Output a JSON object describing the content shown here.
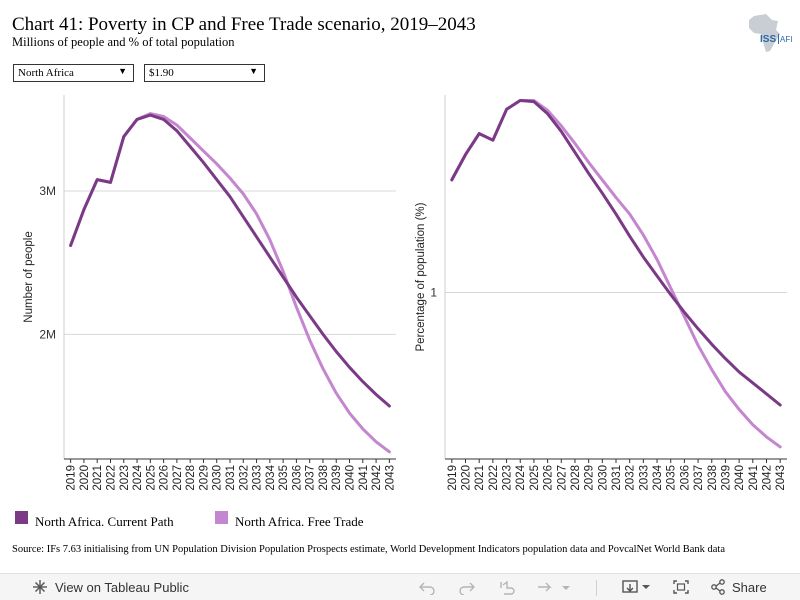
{
  "header": {
    "title": "Chart 41: Poverty in CP and Free Trade scenario, 2019–2043",
    "subtitle": "Millions of people and % of total population",
    "logo_text": "ISS|AFI"
  },
  "filters": {
    "region": "North Africa",
    "poverty_line": "$1.90"
  },
  "legend": {
    "current_path": "North Africa. Current Path",
    "free_trade": "North Africa. Free Trade"
  },
  "colors": {
    "current_path": "#7b3a86",
    "free_trade": "#c486cf",
    "grid": "#d8d8d8",
    "axis": "#555555"
  },
  "source": "Source: IFs 7.63 initialising from UN Population Division Population Prospects estimate, World Development Indicators population data and PovcalNet World Bank data",
  "footer": {
    "view_label": "View on Tableau Public",
    "share_label": "Share"
  },
  "chart_data": [
    {
      "type": "line",
      "ylabel": "Number of people",
      "x": [
        2019,
        2020,
        2021,
        2022,
        2023,
        2024,
        2025,
        2026,
        2027,
        2028,
        2029,
        2030,
        2031,
        2032,
        2033,
        2034,
        2035,
        2036,
        2037,
        2038,
        2039,
        2040,
        2041,
        2042,
        2043
      ],
      "y_ticks": [
        {
          "value": 2000000,
          "label": "2M"
        },
        {
          "value": 3000000,
          "label": "3M"
        }
      ],
      "ylim": [
        1130000,
        3670000
      ],
      "grid": true,
      "series": [
        {
          "name": "North Africa. Current Path",
          "key": "current_path",
          "values": [
            2620000,
            2870000,
            3080000,
            3060000,
            3380000,
            3500000,
            3530000,
            3500000,
            3420000,
            3310000,
            3200000,
            3080000,
            2960000,
            2820000,
            2680000,
            2540000,
            2400000,
            2260000,
            2130000,
            2000000,
            1880000,
            1770000,
            1670000,
            1580000,
            1500000
          ]
        },
        {
          "name": "North Africa. Free Trade",
          "key": "free_trade",
          "values": [
            2620000,
            2870000,
            3080000,
            3060000,
            3380000,
            3500000,
            3540000,
            3520000,
            3460000,
            3370000,
            3280000,
            3190000,
            3090000,
            2980000,
            2840000,
            2660000,
            2440000,
            2190000,
            1960000,
            1760000,
            1590000,
            1450000,
            1340000,
            1250000,
            1180000
          ]
        }
      ]
    },
    {
      "type": "line",
      "ylabel": "Percentage of population (%)",
      "x": [
        2019,
        2020,
        2021,
        2022,
        2023,
        2024,
        2025,
        2026,
        2027,
        2028,
        2029,
        2030,
        2031,
        2032,
        2033,
        2034,
        2035,
        2036,
        2037,
        2038,
        2039,
        2040,
        2041,
        2042,
        2043
      ],
      "y_ticks": [
        {
          "value": 1,
          "label": "1"
        }
      ],
      "ylim": [
        0.245,
        1.895
      ],
      "grid": true,
      "series": [
        {
          "name": "North Africa. Current Path",
          "key": "current_path",
          "values": [
            1.51,
            1.625,
            1.72,
            1.69,
            1.83,
            1.87,
            1.865,
            1.81,
            1.73,
            1.635,
            1.54,
            1.45,
            1.355,
            1.255,
            1.16,
            1.075,
            0.99,
            0.91,
            0.835,
            0.765,
            0.7,
            0.64,
            0.59,
            0.54,
            0.49
          ]
        },
        {
          "name": "North Africa. Free Trade",
          "key": "free_trade",
          "values": [
            1.51,
            1.625,
            1.72,
            1.69,
            1.83,
            1.87,
            1.87,
            1.825,
            1.755,
            1.675,
            1.59,
            1.51,
            1.43,
            1.355,
            1.26,
            1.15,
            1.02,
            0.89,
            0.76,
            0.65,
            0.55,
            0.47,
            0.4,
            0.345,
            0.3
          ]
        }
      ]
    }
  ]
}
